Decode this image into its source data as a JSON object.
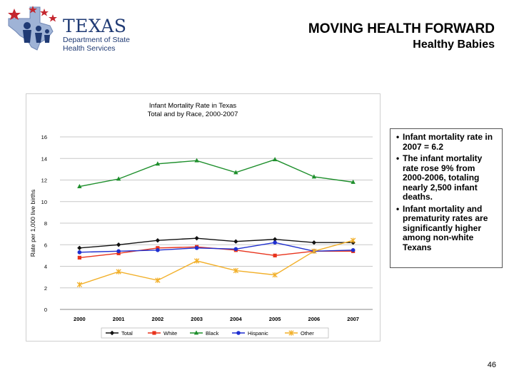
{
  "header": {
    "logo_word": "TEXAS",
    "logo_sub": "Department of State Health Services",
    "title": "MOVING HEALTH FORWARD",
    "subtitle": "Healthy Babies"
  },
  "bullets": [
    "Infant mortality rate in 2007 = 6.2",
    "The infant mortality rate rose 9% from 2000-2006, totaling nearly 2,500 infant deaths.",
    "Infant mortality and prematurity rates are significantly higher among non-white Texans"
  ],
  "page_number": "46",
  "colors": {
    "Total": "#111111",
    "White": "#e8331c",
    "Black": "#1e8f2c",
    "Hispanic": "#1f2fd0",
    "Other": "#f2b02a"
  },
  "chart_data": {
    "type": "line",
    "title": "Infant Mortality Rate in Texas",
    "subtitle": "Total and by Race, 2000-2007",
    "xlabel": "",
    "ylabel": "Rate per 1,000 live births",
    "ylim": [
      0,
      16
    ],
    "yticks": [
      0,
      2,
      4,
      6,
      8,
      10,
      12,
      14,
      16
    ],
    "categories": [
      "2000",
      "2001",
      "2002",
      "2003",
      "2004",
      "2005",
      "2006",
      "2007"
    ],
    "grid": true,
    "legend": "bottom",
    "series": [
      {
        "name": "Total",
        "marker": "diamond",
        "values": [
          5.7,
          6.0,
          6.4,
          6.6,
          6.3,
          6.5,
          6.2,
          6.2
        ]
      },
      {
        "name": "White",
        "marker": "square",
        "values": [
          4.8,
          5.2,
          5.7,
          5.8,
          5.5,
          5.0,
          5.4,
          5.4
        ]
      },
      {
        "name": "Black",
        "marker": "triangle",
        "values": [
          11.4,
          12.1,
          13.5,
          13.8,
          12.7,
          13.9,
          12.3,
          11.8
        ]
      },
      {
        "name": "Hispanic",
        "marker": "circle",
        "values": [
          5.3,
          5.4,
          5.5,
          5.7,
          5.6,
          6.2,
          5.4,
          5.5
        ]
      },
      {
        "name": "Other",
        "marker": "star",
        "values": [
          2.3,
          3.5,
          2.7,
          4.5,
          3.6,
          3.2,
          5.4,
          6.4
        ]
      }
    ]
  }
}
